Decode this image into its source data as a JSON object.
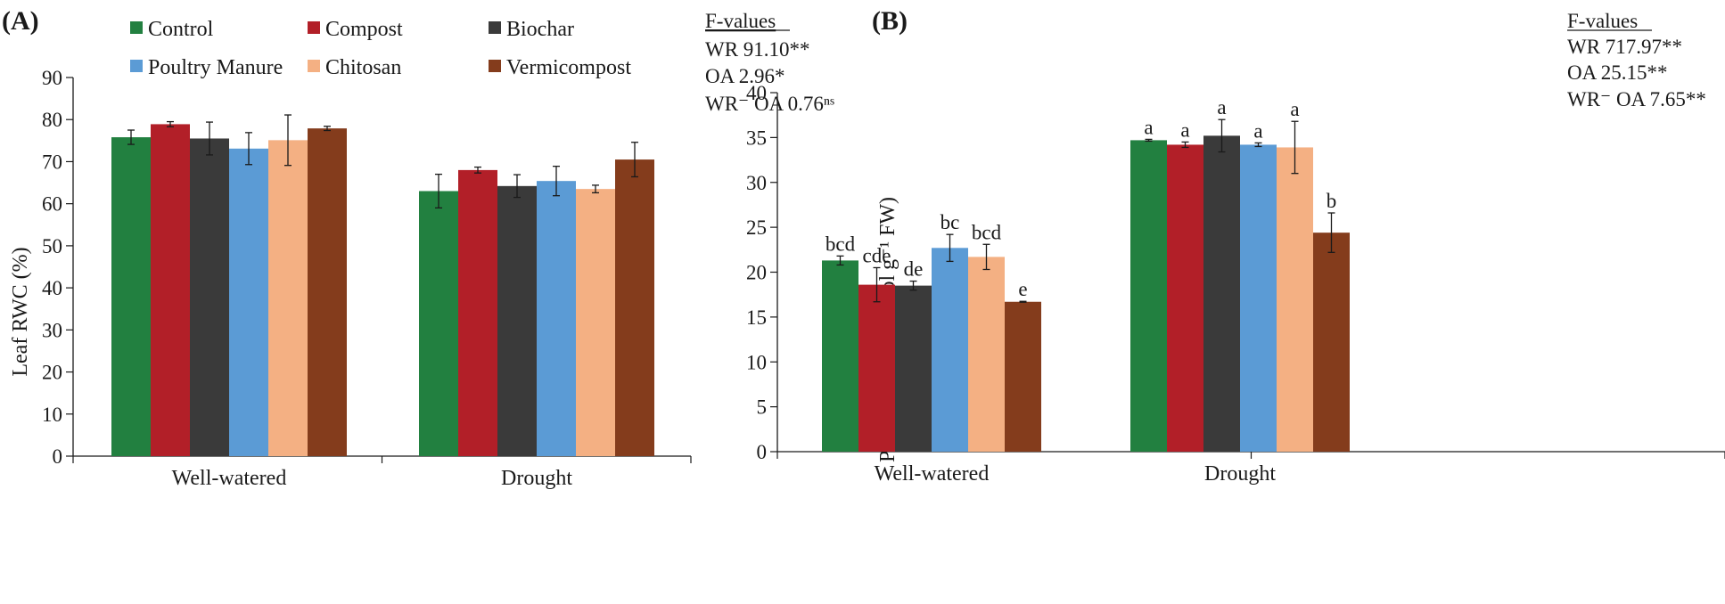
{
  "legend": [
    {
      "name": "Control",
      "color": "#228040"
    },
    {
      "name": "Compost",
      "color": "#b21f28"
    },
    {
      "name": "Biochar",
      "color": "#3a3a3a"
    },
    {
      "name": "Poultry Manure",
      "color": "#5b9bd5"
    },
    {
      "name": "Chitosan",
      "color": "#f4b083"
    },
    {
      "name": "Vermicompost",
      "color": "#843c1c"
    }
  ],
  "chart_data": [
    {
      "panel": "(A)",
      "type": "bar",
      "title": "",
      "xlabel": "",
      "ylabel": "Leaf RWC (%)",
      "ylim": [
        0,
        90
      ],
      "yticks": [
        0,
        10,
        20,
        30,
        40,
        50,
        60,
        70,
        80,
        90
      ],
      "categories": [
        "Well-watered",
        "Drought"
      ],
      "series": [
        {
          "name": "Control",
          "values": [
            75.8,
            63.0
          ],
          "errors": [
            1.7,
            4.0
          ]
        },
        {
          "name": "Compost",
          "values": [
            78.9,
            68.0
          ],
          "errors": [
            0.6,
            0.7
          ]
        },
        {
          "name": "Biochar",
          "values": [
            75.5,
            64.2
          ],
          "errors": [
            3.9,
            2.7
          ]
        },
        {
          "name": "Poultry Manure",
          "values": [
            73.1,
            65.4
          ],
          "errors": [
            3.8,
            3.5
          ]
        },
        {
          "name": "Chitosan",
          "values": [
            75.1,
            63.5
          ],
          "errors": [
            6.0,
            0.9
          ]
        },
        {
          "name": "Vermicompost",
          "values": [
            77.9,
            70.5
          ],
          "errors": [
            0.5,
            4.1
          ]
        }
      ],
      "f_values": {
        "title": "F-values",
        "lines": [
          "WR 91.10**",
          "OA 2.96*",
          "WR⁻ OA 0.76ⁿˢ"
        ]
      }
    },
    {
      "panel": "(B)",
      "type": "bar",
      "title": "",
      "xlabel": "",
      "ylabel": "Proline content (μmol g⁻¹ FW)",
      "ylim": [
        0,
        40
      ],
      "yticks": [
        0,
        5,
        10,
        15,
        20,
        25,
        30,
        35,
        40
      ],
      "categories": [
        "Well-watered",
        "Drought"
      ],
      "series": [
        {
          "name": "Control",
          "values": [
            21.3,
            34.7
          ],
          "errors": [
            0.5,
            0.1
          ],
          "letters": [
            "bcd",
            "a"
          ]
        },
        {
          "name": "Compost",
          "values": [
            18.6,
            34.2
          ],
          "errors": [
            1.9,
            0.3
          ],
          "letters": [
            "cde",
            "a"
          ]
        },
        {
          "name": "Biochar",
          "values": [
            18.5,
            35.2
          ],
          "errors": [
            0.5,
            1.8
          ],
          "letters": [
            "de",
            "a"
          ]
        },
        {
          "name": "Poultry Manure",
          "values": [
            22.7,
            34.2
          ],
          "errors": [
            1.5,
            0.2
          ],
          "letters": [
            "bc",
            "a"
          ]
        },
        {
          "name": "Chitosan",
          "values": [
            21.7,
            33.9
          ],
          "errors": [
            1.4,
            2.9
          ],
          "letters": [
            "bcd",
            "a"
          ]
        },
        {
          "name": "Vermicompost",
          "values": [
            16.7,
            24.4
          ],
          "errors": [
            0.05,
            2.2
          ],
          "letters": [
            "e",
            "b"
          ]
        }
      ],
      "f_values": {
        "title": "F-values",
        "lines": [
          "WR 717.97**",
          "OA 25.15**",
          "WR⁻ OA 7.65**"
        ]
      }
    }
  ]
}
